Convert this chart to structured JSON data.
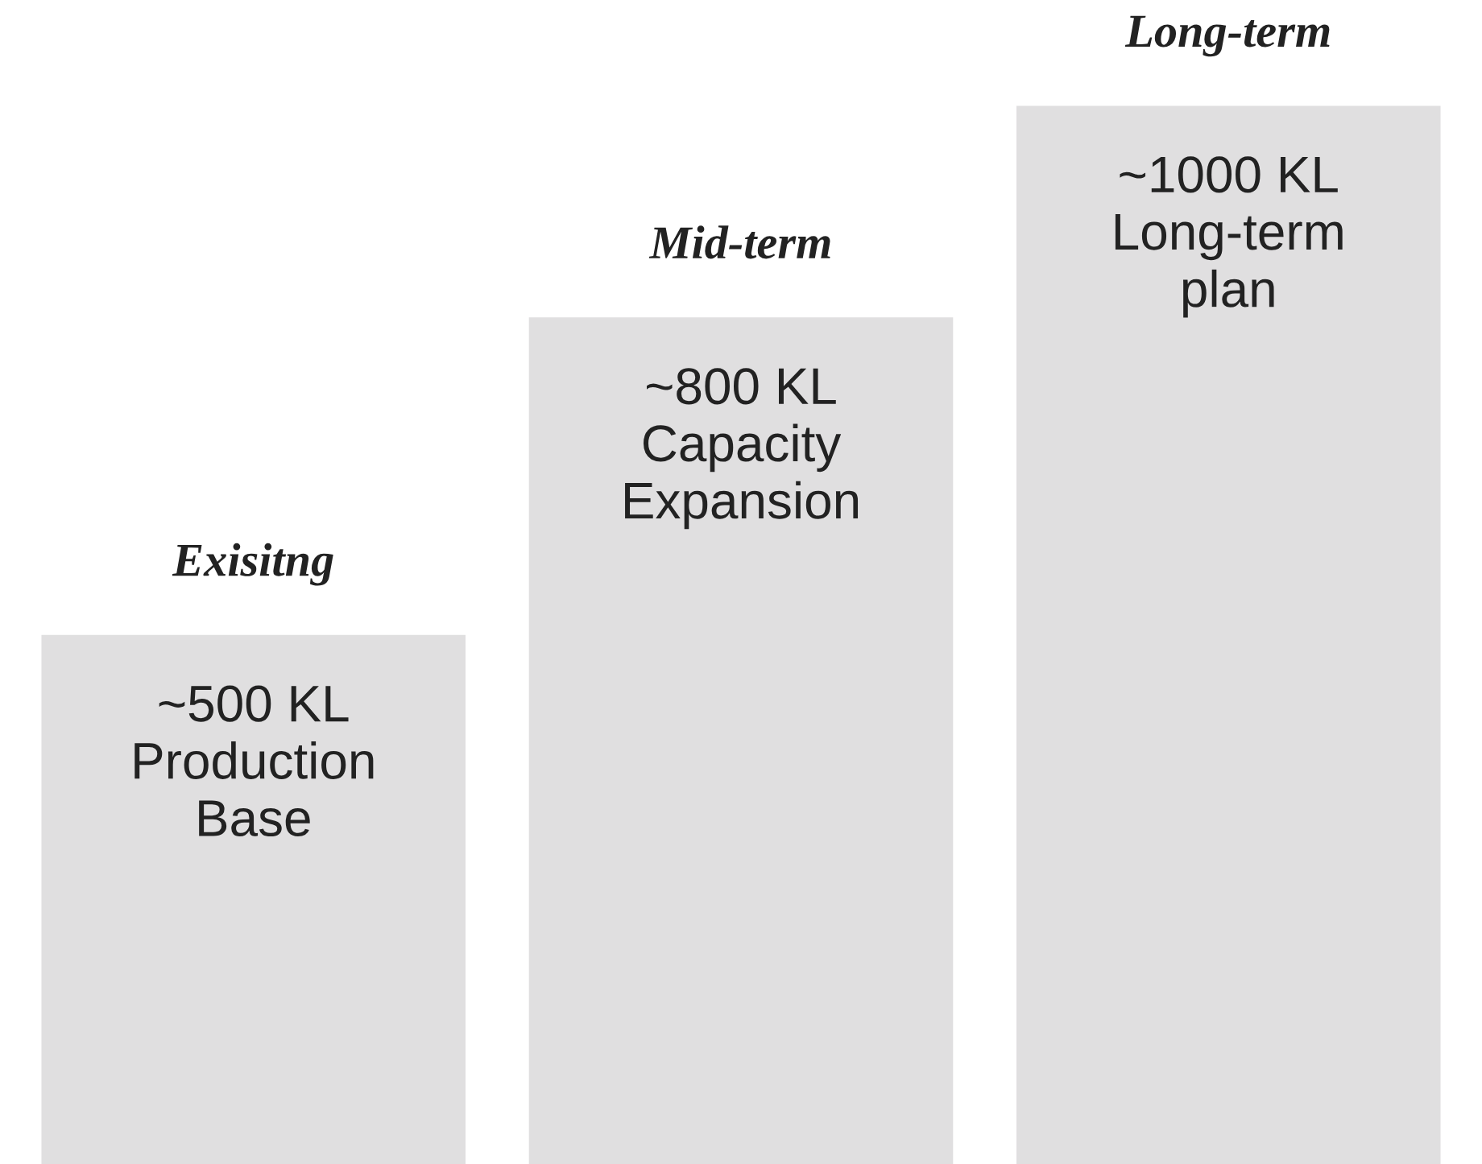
{
  "chart_data": {
    "type": "bar",
    "categories": [
      "Exisitng",
      "Mid-term",
      "Long-term"
    ],
    "values": [
      500,
      800,
      1000
    ],
    "colors": [
      "#e0dfe0",
      "#e0dfe0",
      "#e0dfe0"
    ],
    "value_labels": [
      "~500 KL\nProduction\nBase",
      "~800 KL\nCapacity\nExpansion",
      "~1000 KL\nLong-term\nplan"
    ],
    "ylim": [
      0,
      1100
    ]
  }
}
